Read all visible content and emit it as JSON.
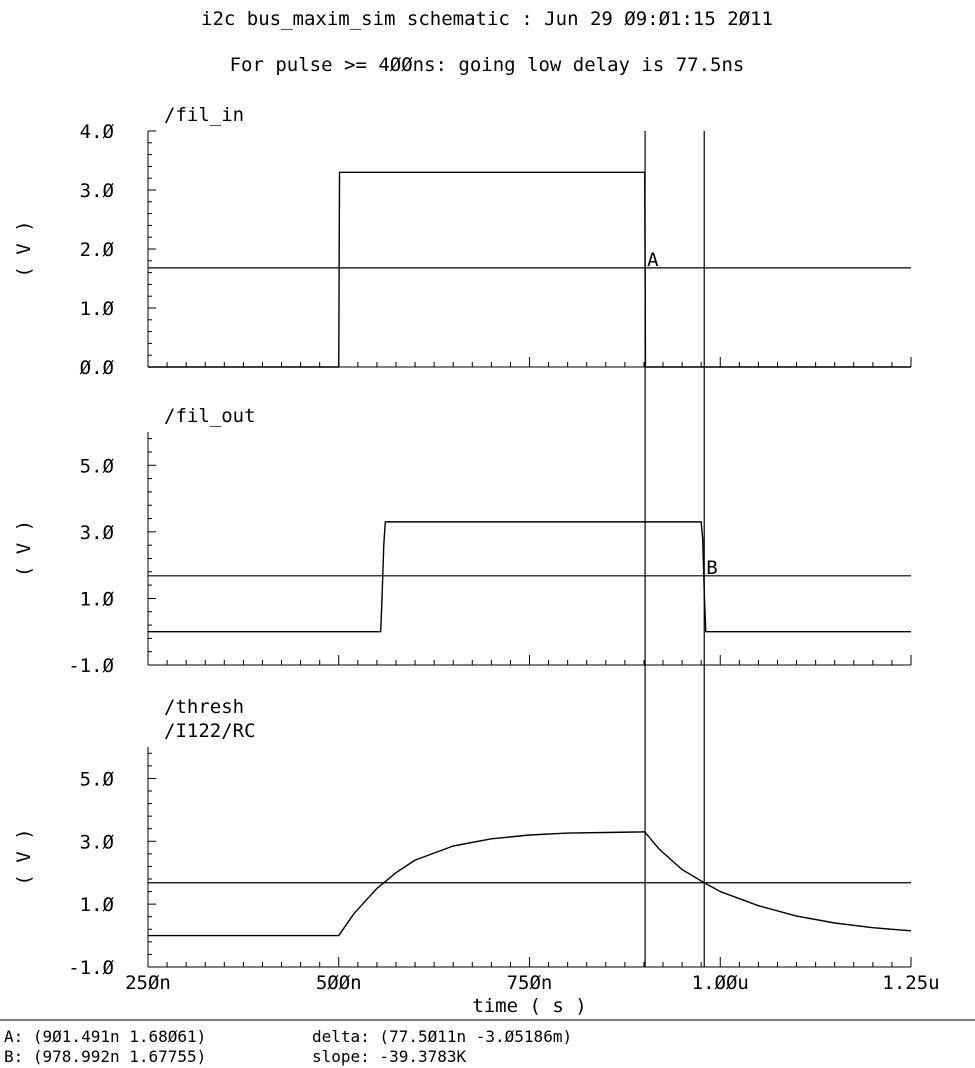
{
  "title": "i2c bus_maxim_sim schematic : Jun 29 09:01:15 2011",
  "subtitle": "For pulse >= 400ns: going low delay is 77.5ns",
  "chart_data": {
    "type": "line",
    "x_axis": {
      "label": "time ( s )",
      "range": [
        250,
        1250
      ],
      "units": "ns",
      "ticks": [
        250,
        500,
        750,
        1000,
        1250
      ],
      "tick_labels": [
        "250n",
        "500n",
        "750n",
        "1.00u",
        "1.25u"
      ]
    },
    "panels": [
      {
        "name": "/fil_in",
        "trace_labels": [
          "/fil_in"
        ],
        "ylabel": "( V )",
        "ylim": [
          0,
          4
        ],
        "yticks": [
          0,
          1,
          2,
          3,
          4
        ],
        "ytick_labels": [
          "0.0",
          "1.0",
          "2.0",
          "3.0",
          "4.0"
        ],
        "threshold": 1.68,
        "series": [
          {
            "name": "/fil_in",
            "x": [
              250,
              500,
              501,
              901,
              902,
              1250
            ],
            "y": [
              0,
              0,
              3.3,
              3.3,
              0,
              0
            ]
          }
        ]
      },
      {
        "name": "/fil_out",
        "trace_labels": [
          "/fil_out"
        ],
        "ylabel": "( V )",
        "ylim": [
          -1,
          6
        ],
        "yticks": [
          -1,
          1,
          3,
          5
        ],
        "ytick_labels": [
          "-1.0",
          "1.0",
          "3.0",
          "5.0"
        ],
        "threshold": 1.68,
        "series": [
          {
            "name": "/fil_out",
            "x": [
              250,
              555,
              557,
              559,
              561,
              975,
              977,
              979,
              981,
              1250
            ],
            "y": [
              0,
              0,
              1.2,
              2.6,
              3.3,
              3.3,
              2.8,
              1.2,
              0,
              0
            ]
          }
        ]
      },
      {
        "name": "/thresh",
        "trace_labels": [
          "/thresh",
          "/I122/RC"
        ],
        "ylabel": "( V )",
        "ylim": [
          -1,
          6
        ],
        "yticks": [
          -1,
          1,
          3,
          5
        ],
        "ytick_labels": [
          "-1.0",
          "1.0",
          "3.0",
          "5.0"
        ],
        "threshold": 1.68,
        "series": [
          {
            "name": "/I122/RC",
            "x": [
              250,
              500,
              520,
              550,
              575,
              600,
              650,
              700,
              750,
              800,
              850,
              901,
              920,
              950,
              979,
              1000,
              1050,
              1100,
              1150,
              1200,
              1250
            ],
            "y": [
              0,
              0,
              0.7,
              1.5,
              2.0,
              2.4,
              2.85,
              3.08,
              3.2,
              3.26,
              3.28,
              3.3,
              2.75,
              2.1,
              1.68,
              1.4,
              0.95,
              0.62,
              0.4,
              0.25,
              0.15
            ]
          }
        ]
      }
    ],
    "markers": [
      {
        "label": "A",
        "x": 901.491,
        "y": 1.68061
      },
      {
        "label": "B",
        "x": 978.992,
        "y": 1.67755
      }
    ],
    "grid": false
  },
  "readout": {
    "a": "A: (901.491n 1.68061)",
    "b": "B: (978.992n 1.67755)",
    "delta": "delta: (77.5011n -3.05186m)",
    "slope": "slope: -39.3783K"
  }
}
